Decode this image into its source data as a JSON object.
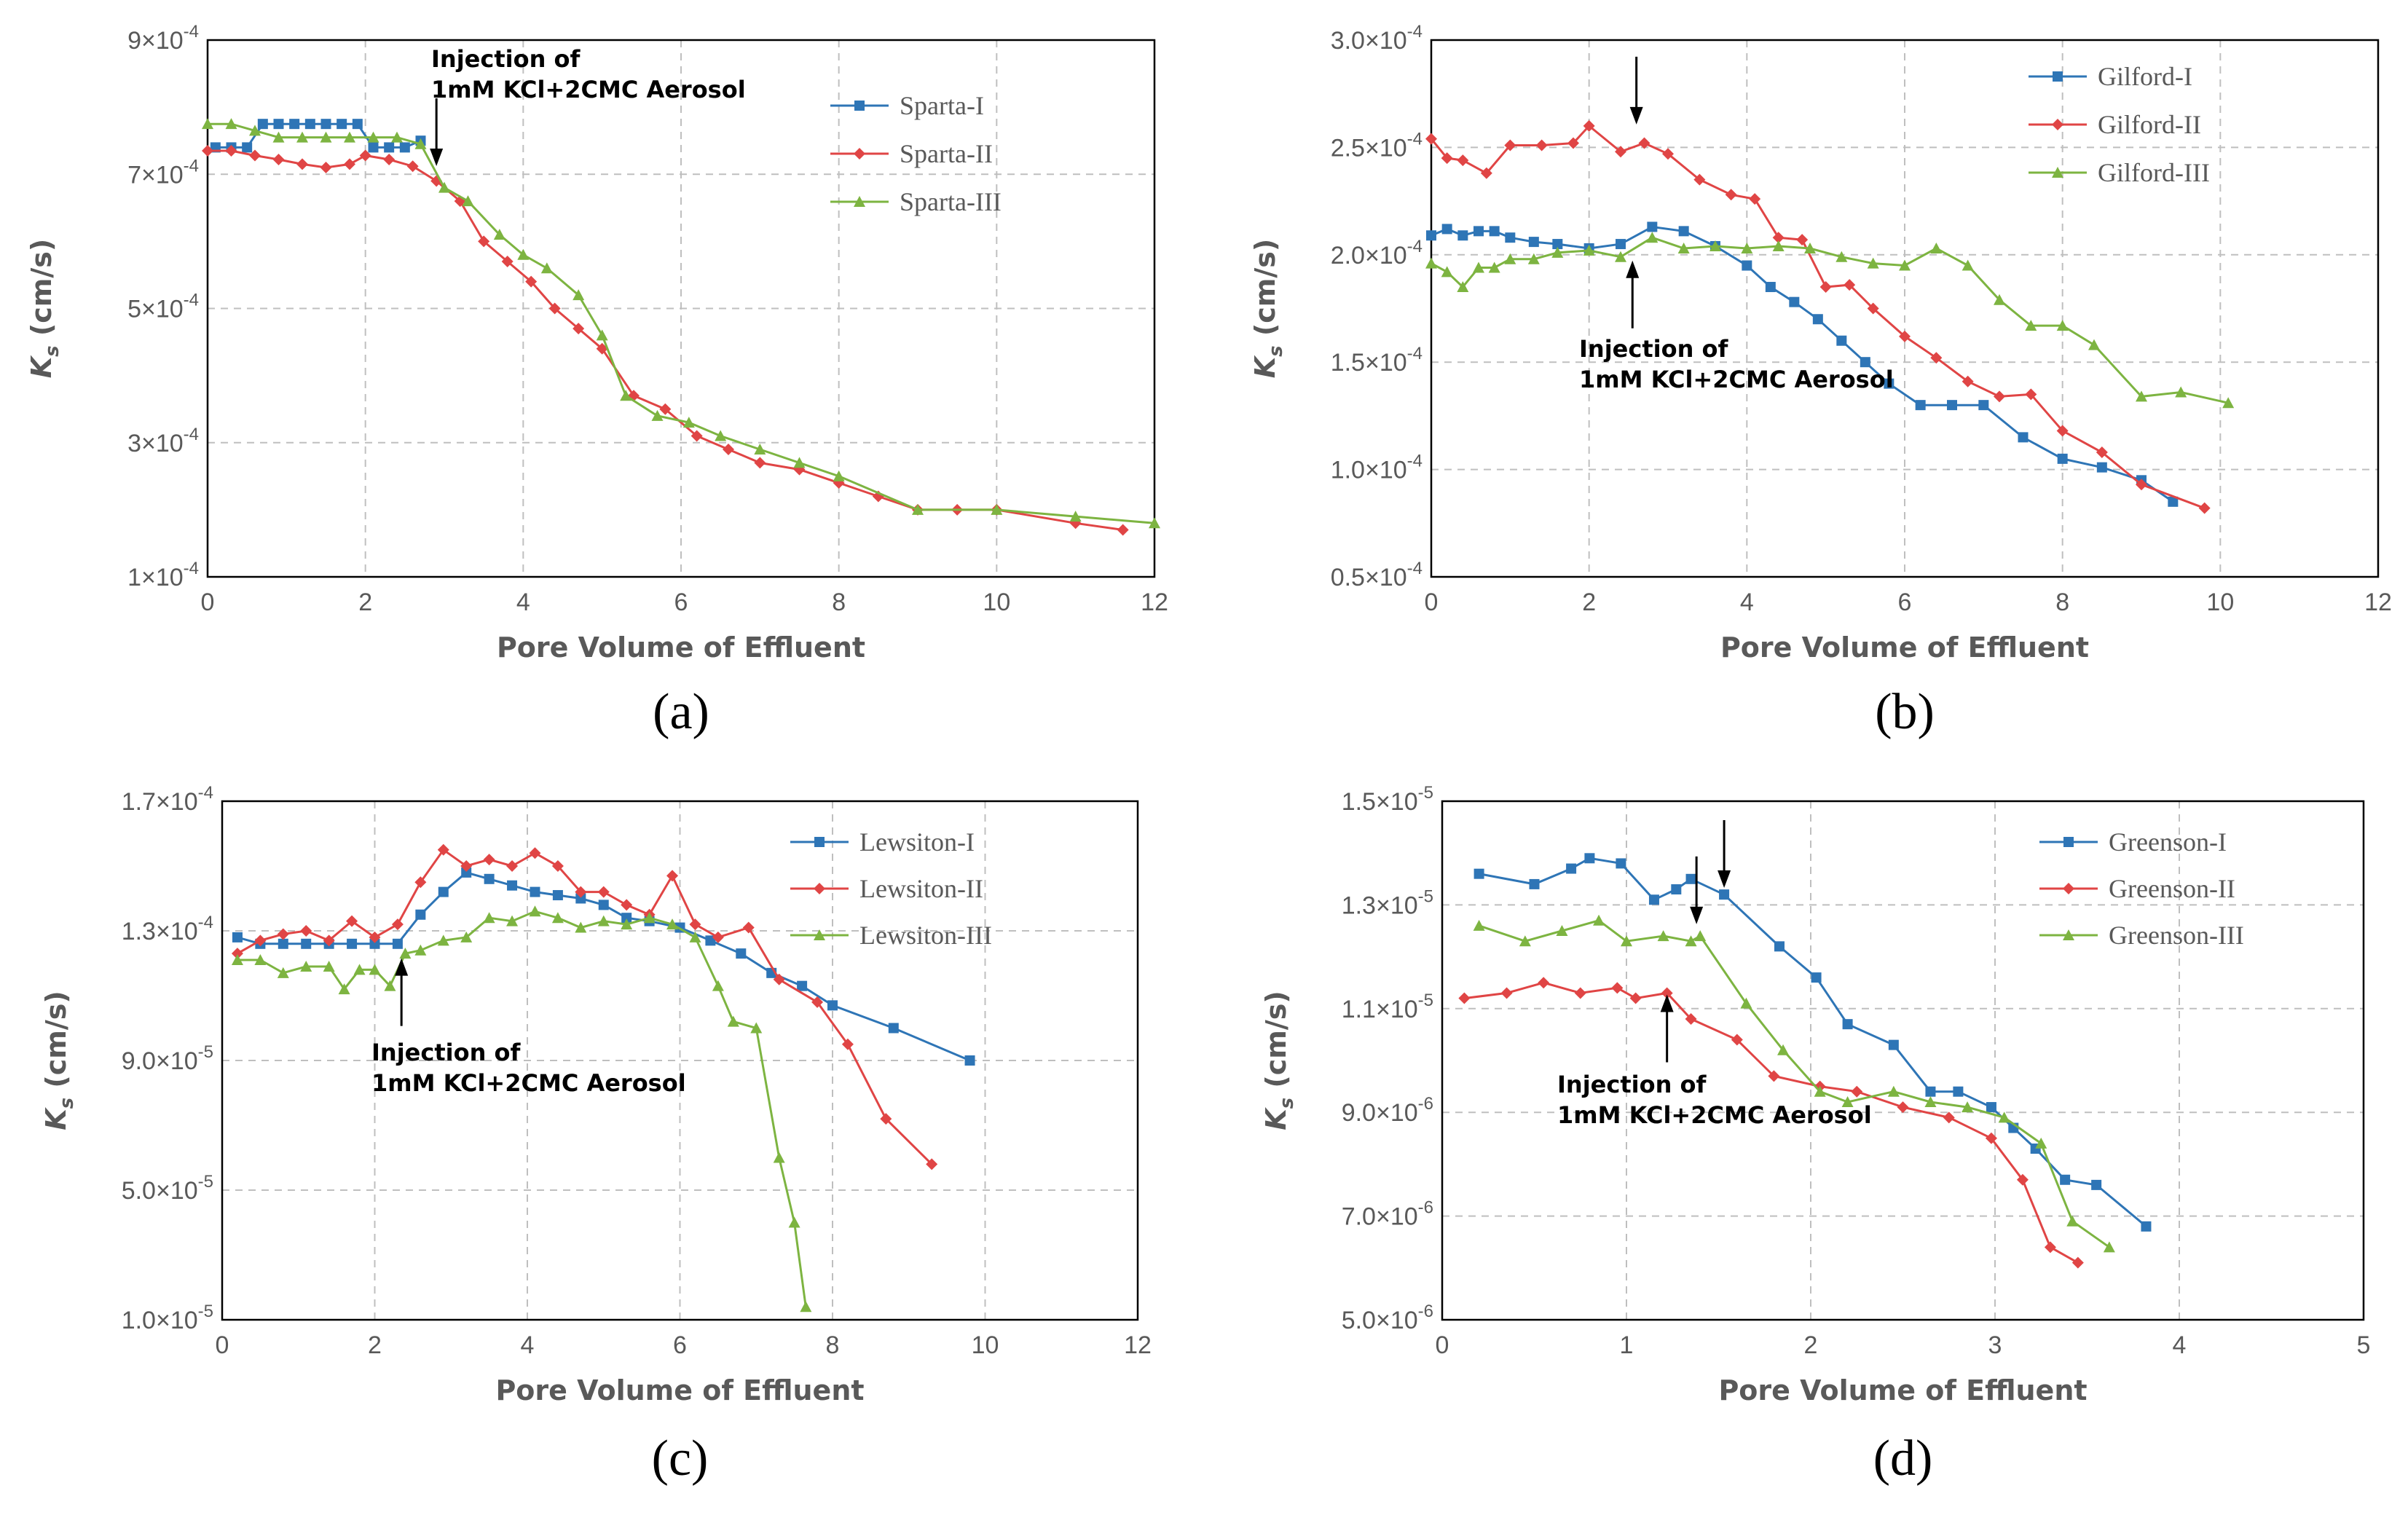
{
  "chart_data": [
    {
      "type": "line",
      "panel_label": "(a)",
      "xlabel": "Pore Volume of Effluent",
      "ylabel": "K",
      "ylabel_sub": "s",
      "ylabel_unit": " (cm/s)",
      "xlim": [
        0,
        12
      ],
      "ylim": [
        0.0001,
        0.0009
      ],
      "x_ticks": [
        0,
        2,
        4,
        6,
        8,
        10,
        12
      ],
      "y_ticks": [
        0.0001,
        0.0003,
        0.0005,
        0.0007,
        0.0009
      ],
      "y_tick_labels": [
        "1×10",
        "3×10",
        "5×10",
        "7×10",
        "9×10"
      ],
      "y_tick_exponents": [
        "-4",
        "-4",
        "-4",
        "-4",
        "-4"
      ],
      "legend_position": "top-right",
      "annotations": [
        {
          "lines": [
            "Injection of",
            "1mM KCl+2CMC Aerosol"
          ],
          "arrow": "down",
          "x": 2.9,
          "y": 0.00071
        }
      ],
      "series": [
        {
          "name": "Sparta-I",
          "color": "#2E75B6",
          "marker": "square",
          "x": [
            0.1,
            0.3,
            0.5,
            0.7,
            0.9,
            1.1,
            1.3,
            1.5,
            1.7,
            1.9,
            2.1,
            2.3,
            2.5,
            2.7
          ],
          "y": [
            0.00074,
            0.00074,
            0.00074,
            0.000775,
            0.000775,
            0.000775,
            0.000775,
            0.000775,
            0.000775,
            0.000775,
            0.00074,
            0.00074,
            0.00074,
            0.00075
          ]
        },
        {
          "name": "Sparta-II",
          "color": "#E04545",
          "marker": "diamond",
          "x": [
            0,
            0.3,
            0.6,
            0.9,
            1.2,
            1.5,
            1.8,
            2.0,
            2.3,
            2.6,
            2.9,
            3.2,
            3.5,
            3.8,
            4.1,
            4.4,
            4.7,
            5.0,
            5.4,
            5.8,
            6.2,
            6.6,
            7.0,
            7.5,
            8.0,
            8.5,
            9.0,
            9.5,
            10.0,
            11.0,
            11.6
          ],
          "y": [
            0.000735,
            0.000735,
            0.000728,
            0.000722,
            0.000715,
            0.00071,
            0.000715,
            0.000728,
            0.000722,
            0.000712,
            0.00069,
            0.00066,
            0.0006,
            0.00057,
            0.00054,
            0.0005,
            0.00047,
            0.00044,
            0.00037,
            0.00035,
            0.00031,
            0.00029,
            0.00027,
            0.00026,
            0.00024,
            0.00022,
            0.0002,
            0.0002,
            0.0002,
            0.00018,
            0.00017
          ]
        },
        {
          "name": "Sparta-III",
          "color": "#7DB441",
          "marker": "triangle",
          "x": [
            0,
            0.3,
            0.6,
            0.9,
            1.2,
            1.5,
            1.8,
            2.1,
            2.4,
            2.7,
            3.0,
            3.3,
            3.7,
            4.0,
            4.3,
            4.7,
            5.0,
            5.3,
            5.7,
            6.1,
            6.5,
            7.0,
            7.5,
            8.0,
            9.0,
            10.0,
            11.0,
            12.0
          ],
          "y": [
            0.000775,
            0.000775,
            0.000765,
            0.000755,
            0.000755,
            0.000755,
            0.000755,
            0.000755,
            0.000755,
            0.000745,
            0.00068,
            0.00066,
            0.00061,
            0.00058,
            0.00056,
            0.00052,
            0.00046,
            0.00037,
            0.00034,
            0.00033,
            0.00031,
            0.00029,
            0.00027,
            0.00025,
            0.0002,
            0.0002,
            0.00019,
            0.00018
          ]
        }
      ]
    },
    {
      "type": "line",
      "panel_label": "(b)",
      "xlabel": "Pore Volume of Effluent",
      "ylabel": "K",
      "ylabel_sub": "s",
      "ylabel_unit": " (cm/s)",
      "xlim": [
        0,
        12
      ],
      "ylim": [
        5e-05,
        0.0003
      ],
      "x_ticks": [
        0,
        2,
        4,
        6,
        8,
        10,
        12
      ],
      "y_ticks": [
        5e-05,
        0.0001,
        0.00015,
        0.0002,
        0.00025,
        0.0003
      ],
      "y_tick_labels": [
        "0.5×10",
        "1.0×10",
        "1.5×10",
        "2.0×10",
        "2.5×10",
        "3.0×10"
      ],
      "y_tick_exponents": [
        "-4",
        "-4",
        "-4",
        "-4",
        "-4",
        "-4"
      ],
      "legend_position": "top-right",
      "annotations": [
        {
          "lines": [
            "Injection of",
            "1mM KCl+2CMC Aerosol"
          ],
          "arrow": "up",
          "x": 2.55,
          "y": 0.000198
        },
        {
          "lines": [],
          "arrow": "down",
          "x": 2.6,
          "y": 0.00026
        }
      ],
      "series": [
        {
          "name": "Gilford-I",
          "color": "#2E75B6",
          "marker": "square",
          "x": [
            0,
            0.2,
            0.4,
            0.6,
            0.8,
            1.0,
            1.3,
            1.6,
            2.0,
            2.4,
            2.8,
            3.2,
            3.6,
            4.0,
            4.3,
            4.6,
            4.9,
            5.2,
            5.5,
            5.8,
            6.2,
            6.6,
            7.0,
            7.5,
            8.0,
            8.5,
            9.0,
            9.4
          ],
          "y": [
            0.000209,
            0.000212,
            0.000209,
            0.000211,
            0.000211,
            0.000208,
            0.000206,
            0.000205,
            0.000203,
            0.000205,
            0.000213,
            0.000211,
            0.000204,
            0.000195,
            0.000185,
            0.000178,
            0.00017,
            0.00016,
            0.00015,
            0.00014,
            0.00013,
            0.00013,
            0.00013,
            0.000115,
            0.000105,
            0.000101,
            9.5e-05,
            8.5e-05
          ]
        },
        {
          "name": "Gilford-II",
          "color": "#E04545",
          "marker": "diamond",
          "x": [
            0,
            0.2,
            0.4,
            0.7,
            1.0,
            1.4,
            1.8,
            2.0,
            2.4,
            2.7,
            3.0,
            3.4,
            3.8,
            4.1,
            4.4,
            4.7,
            5.0,
            5.3,
            5.6,
            6.0,
            6.4,
            6.8,
            7.2,
            7.6,
            8.0,
            8.5,
            9.0,
            9.8
          ],
          "y": [
            0.000254,
            0.000245,
            0.000244,
            0.000238,
            0.000251,
            0.000251,
            0.000252,
            0.00026,
            0.000248,
            0.000252,
            0.000247,
            0.000235,
            0.000228,
            0.000226,
            0.000208,
            0.000207,
            0.000185,
            0.000186,
            0.000175,
            0.000162,
            0.000152,
            0.000141,
            0.000134,
            0.000135,
            0.000118,
            0.000108,
            9.3e-05,
            8.2e-05
          ]
        },
        {
          "name": "Gilford-III",
          "color": "#7DB441",
          "marker": "triangle",
          "x": [
            0,
            0.2,
            0.4,
            0.6,
            0.8,
            1.0,
            1.3,
            1.6,
            2.0,
            2.4,
            2.8,
            3.2,
            3.6,
            4.0,
            4.4,
            4.8,
            5.2,
            5.6,
            6.0,
            6.4,
            6.8,
            7.2,
            7.6,
            8.0,
            8.4,
            9.0,
            9.5,
            10.1
          ],
          "y": [
            0.000196,
            0.000192,
            0.000185,
            0.000194,
            0.000194,
            0.000198,
            0.000198,
            0.000201,
            0.000202,
            0.000199,
            0.000208,
            0.000203,
            0.000204,
            0.000203,
            0.000204,
            0.000203,
            0.000199,
            0.000196,
            0.000195,
            0.000203,
            0.000195,
            0.000179,
            0.000167,
            0.000167,
            0.000158,
            0.000134,
            0.000136,
            0.000131
          ]
        }
      ]
    },
    {
      "type": "line",
      "panel_label": "(c)",
      "xlabel": "Pore Volume of Effluent",
      "ylabel": "K",
      "ylabel_sub": "s",
      "ylabel_unit": " (cm/s)",
      "xlim": [
        0,
        12
      ],
      "ylim": [
        1e-05,
        0.00017
      ],
      "x_ticks": [
        0,
        2,
        4,
        6,
        8,
        10,
        12
      ],
      "y_ticks": [
        1e-05,
        5e-05,
        9e-05,
        0.00013,
        0.00017
      ],
      "y_tick_labels": [
        "1.0×10",
        "5.0×10",
        "9.0×10",
        "1.3×10",
        "1.7×10"
      ],
      "y_tick_exponents": [
        "-5",
        "-5",
        "-5",
        "-4",
        "-4"
      ],
      "legend_position": "top-right",
      "annotations": [
        {
          "lines": [
            "Injection of",
            "1mM KCl+2CMC Aerosol"
          ],
          "arrow": "up",
          "x": 2.35,
          "y": 0.000122
        }
      ],
      "series": [
        {
          "name": "Lewsiton-I",
          "color": "#2E75B6",
          "marker": "square",
          "x": [
            0.2,
            0.5,
            0.8,
            1.1,
            1.4,
            1.7,
            2.0,
            2.3,
            2.6,
            2.9,
            3.2,
            3.5,
            3.8,
            4.1,
            4.4,
            4.7,
            5.0,
            5.3,
            5.6,
            6.0,
            6.4,
            6.8,
            7.2,
            7.6,
            8.0,
            8.8,
            9.8
          ],
          "y": [
            0.000128,
            0.000126,
            0.000126,
            0.000126,
            0.000126,
            0.000126,
            0.000126,
            0.000126,
            0.000135,
            0.000142,
            0.000148,
            0.000146,
            0.000144,
            0.000142,
            0.000141,
            0.00014,
            0.000138,
            0.000134,
            0.000133,
            0.000131,
            0.000127,
            0.000123,
            0.000117,
            0.000113,
            0.000107,
            0.0001,
            9e-05
          ]
        },
        {
          "name": "Lewsiton-II",
          "color": "#E04545",
          "marker": "diamond",
          "x": [
            0.2,
            0.5,
            0.8,
            1.1,
            1.4,
            1.7,
            2.0,
            2.3,
            2.6,
            2.9,
            3.2,
            3.5,
            3.8,
            4.1,
            4.4,
            4.7,
            5.0,
            5.3,
            5.6,
            5.9,
            6.2,
            6.5,
            6.9,
            7.3,
            7.8,
            8.2,
            8.7,
            9.3
          ],
          "y": [
            0.000123,
            0.000127,
            0.000129,
            0.00013,
            0.000127,
            0.000133,
            0.000128,
            0.000132,
            0.000145,
            0.000155,
            0.00015,
            0.000152,
            0.00015,
            0.000154,
            0.00015,
            0.000142,
            0.000142,
            0.000138,
            0.000135,
            0.000147,
            0.000132,
            0.000128,
            0.000131,
            0.000115,
            0.000108,
            9.5e-05,
            7.2e-05,
            5.8e-05
          ]
        },
        {
          "name": "Lewsiton-III",
          "color": "#7DB441",
          "marker": "triangle",
          "x": [
            0.2,
            0.5,
            0.8,
            1.1,
            1.4,
            1.6,
            1.8,
            2.0,
            2.2,
            2.4,
            2.6,
            2.9,
            3.2,
            3.5,
            3.8,
            4.1,
            4.4,
            4.7,
            5.0,
            5.3,
            5.6,
            5.9,
            6.2,
            6.5,
            6.7,
            7.0,
            7.3,
            7.5,
            7.65
          ],
          "y": [
            0.000121,
            0.000121,
            0.000117,
            0.000119,
            0.000119,
            0.000112,
            0.000118,
            0.000118,
            0.000113,
            0.000123,
            0.000124,
            0.000127,
            0.000128,
            0.000134,
            0.000133,
            0.000136,
            0.000134,
            0.000131,
            0.000133,
            0.000132,
            0.000134,
            0.000132,
            0.000128,
            0.000113,
            0.000102,
            0.0001,
            6e-05,
            4e-05,
            1.4e-05
          ]
        }
      ]
    },
    {
      "type": "line",
      "panel_label": "(d)",
      "xlabel": "Pore Volume of Effluent",
      "ylabel": "K",
      "ylabel_sub": "s",
      "ylabel_unit": " (cm/s)",
      "xlim": [
        0,
        5
      ],
      "ylim": [
        5e-06,
        1.5e-05
      ],
      "x_ticks": [
        0,
        1,
        2,
        3,
        4,
        5
      ],
      "y_ticks": [
        5e-06,
        7e-06,
        9e-06,
        1.1e-05,
        1.3e-05,
        1.5e-05
      ],
      "y_tick_labels": [
        "5.0×10",
        "7.0×10",
        "9.0×10",
        "1.1×10",
        "1.3×10",
        "1.5×10"
      ],
      "y_tick_exponents": [
        "-6",
        "-6",
        "-6",
        "-5",
        "-5",
        "-5"
      ],
      "legend_position": "top-right",
      "annotations": [
        {
          "lines": [
            "Injection of",
            "1mM KCl+2CMC Aerosol"
          ],
          "arrow": "up",
          "x": 1.22,
          "y": 1.13e-05
        },
        {
          "lines": [],
          "arrow": "down",
          "x": 1.53,
          "y": 1.33e-05
        },
        {
          "lines": [],
          "arrow": "down",
          "x": 1.38,
          "y": 1.26e-05
        }
      ],
      "series": [
        {
          "name": "Greenson-I",
          "color": "#2E75B6",
          "marker": "square",
          "x": [
            0.2,
            0.5,
            0.7,
            0.8,
            0.97,
            1.15,
            1.27,
            1.35,
            1.53,
            1.83,
            2.03,
            2.2,
            2.45,
            2.65,
            2.8,
            2.98,
            3.1,
            3.22,
            3.38,
            3.55,
            3.82
          ],
          "y": [
            1.36e-05,
            1.34e-05,
            1.37e-05,
            1.39e-05,
            1.38e-05,
            1.31e-05,
            1.33e-05,
            1.35e-05,
            1.32e-05,
            1.22e-05,
            1.16e-05,
            1.07e-05,
            1.03e-05,
            9.4e-06,
            9.4e-06,
            9.1e-06,
            8.7e-06,
            8.3e-06,
            7.7e-06,
            7.6e-06,
            6.8e-06
          ]
        },
        {
          "name": "Greenson-II",
          "color": "#E04545",
          "marker": "diamond",
          "x": [
            0.12,
            0.35,
            0.55,
            0.75,
            0.95,
            1.05,
            1.22,
            1.35,
            1.6,
            1.8,
            2.05,
            2.25,
            2.5,
            2.75,
            2.98,
            3.15,
            3.3,
            3.45
          ],
          "y": [
            1.12e-05,
            1.13e-05,
            1.15e-05,
            1.13e-05,
            1.14e-05,
            1.12e-05,
            1.13e-05,
            1.08e-05,
            1.04e-05,
            9.7e-06,
            9.5e-06,
            9.4e-06,
            9.1e-06,
            8.9e-06,
            8.5e-06,
            7.7e-06,
            6.4e-06,
            6.1e-06
          ]
        },
        {
          "name": "Greenson-III",
          "color": "#7DB441",
          "marker": "triangle",
          "x": [
            0.2,
            0.45,
            0.65,
            0.85,
            1.0,
            1.2,
            1.35,
            1.4,
            1.65,
            1.85,
            2.05,
            2.2,
            2.45,
            2.65,
            2.85,
            3.05,
            3.25,
            3.42,
            3.62
          ],
          "y": [
            1.26e-05,
            1.23e-05,
            1.25e-05,
            1.27e-05,
            1.23e-05,
            1.24e-05,
            1.23e-05,
            1.24e-05,
            1.11e-05,
            1.02e-05,
            9.4e-06,
            9.2e-06,
            9.4e-06,
            9.2e-06,
            9.1e-06,
            8.9e-06,
            8.4e-06,
            6.9e-06,
            6.4e-06
          ]
        }
      ]
    }
  ]
}
